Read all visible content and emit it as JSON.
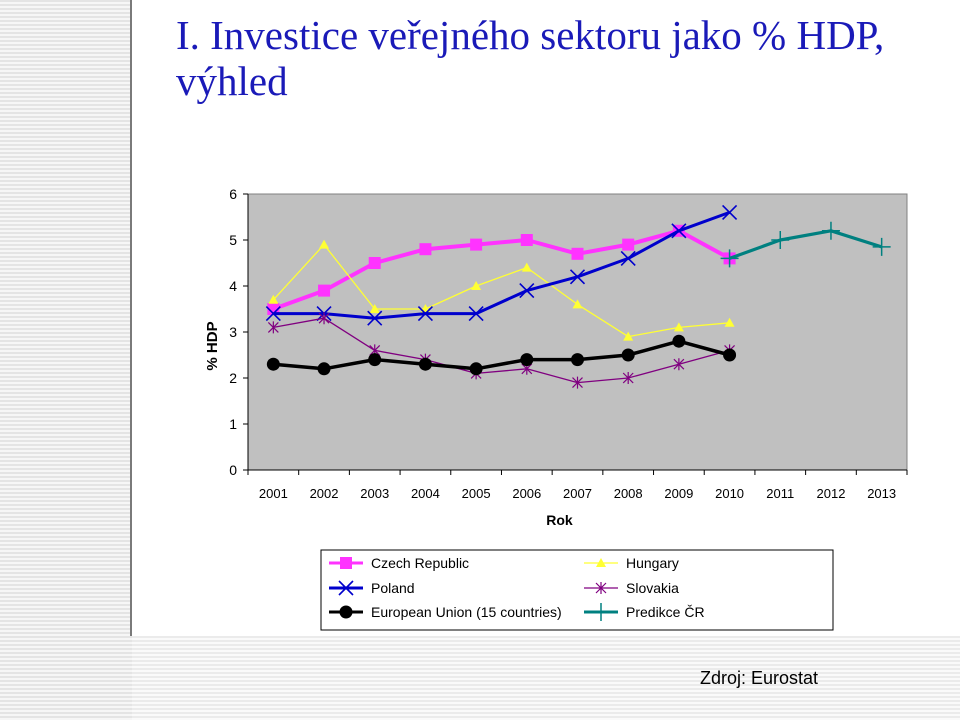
{
  "slide": {
    "title": "I. Investice veřejného sektoru jako % HDP, výhled",
    "source": "Zdroj: Eurostat"
  },
  "colors": {
    "title": "#1a1ab8",
    "plot_background": "#c0c0c0",
    "czech": "#ff33ff",
    "hungary": "#ffff33",
    "poland": "#0000cc",
    "slovakia": "#800080",
    "eu15": "#000000",
    "forecast": "#008080"
  },
  "chart_data": {
    "type": "line",
    "title": "",
    "xlabel": "Rok",
    "ylabel": "% HDP",
    "ylim": [
      0,
      6
    ],
    "yticks": [
      "0",
      "1",
      "2",
      "3",
      "4",
      "5",
      "6"
    ],
    "categories": [
      "2001",
      "2002",
      "2003",
      "2004",
      "2005",
      "2006",
      "2007",
      "2008",
      "2009",
      "2010",
      "2011",
      "2012",
      "2013"
    ],
    "grid": false,
    "legend_position": "bottom",
    "series": [
      {
        "name": "Czech Republic",
        "marker": "square",
        "color": "#ff33ff",
        "values": [
          3.5,
          3.9,
          4.5,
          4.8,
          4.9,
          5.0,
          4.7,
          4.9,
          5.2,
          4.6,
          null,
          null,
          null
        ]
      },
      {
        "name": "Hungary",
        "marker": "triangle",
        "color": "#ffff33",
        "values": [
          3.7,
          4.9,
          3.5,
          3.5,
          4.0,
          4.4,
          3.6,
          2.9,
          3.1,
          3.2,
          null,
          null,
          null
        ]
      },
      {
        "name": "Poland",
        "marker": "x",
        "color": "#0000cc",
        "values": [
          3.4,
          3.4,
          3.3,
          3.4,
          3.4,
          3.9,
          4.2,
          4.6,
          5.2,
          5.6,
          null,
          null,
          null
        ]
      },
      {
        "name": "Slovakia",
        "marker": "star",
        "color": "#800080",
        "values": [
          3.1,
          3.3,
          2.6,
          2.4,
          2.1,
          2.2,
          1.9,
          2.0,
          2.3,
          2.6,
          null,
          null,
          null
        ]
      },
      {
        "name": "European Union (15 countries)",
        "marker": "circle",
        "color": "#000000",
        "values": [
          2.3,
          2.2,
          2.4,
          2.3,
          2.2,
          2.4,
          2.4,
          2.5,
          2.8,
          2.5,
          null,
          null,
          null
        ]
      },
      {
        "name": "Predikce ČR",
        "marker": "plus",
        "color": "#008080",
        "values": [
          null,
          null,
          null,
          null,
          null,
          null,
          null,
          null,
          null,
          4.6,
          5.0,
          5.2,
          4.85
        ]
      }
    ]
  }
}
